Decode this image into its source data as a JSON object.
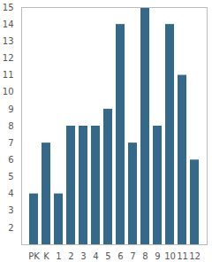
{
  "chart_data": {
    "type": "bar",
    "categories": [
      "PK",
      "K",
      "1",
      "2",
      "3",
      "4",
      "5",
      "6",
      "7",
      "8",
      "9",
      "10",
      "11",
      "12"
    ],
    "values": [
      4,
      7,
      4,
      8,
      8,
      8,
      9,
      14,
      7,
      15,
      8,
      14,
      11,
      6
    ],
    "color": "#346989",
    "ylim": [
      1,
      15
    ],
    "yticks": [
      2,
      3,
      4,
      5,
      6,
      7,
      8,
      9,
      10,
      11,
      12,
      13,
      14,
      15
    ],
    "grid": false
  }
}
